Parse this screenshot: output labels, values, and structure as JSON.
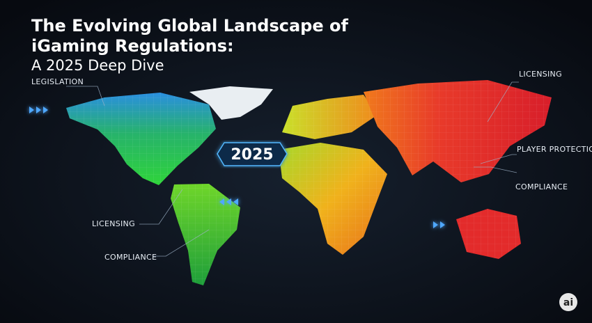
{
  "header": {
    "title_lines": [
      "The Evolving Global Landscape of",
      "iGaming Regulations:"
    ],
    "subtitle": "A 2025 Deep Dive"
  },
  "map": {
    "center_label": "2025",
    "labels": [
      "LEGISLATION",
      "LICENSING",
      "PLAYER PROTECTION",
      "COMPLIANCE",
      "LICENSING",
      "COMPLIANCE"
    ]
  },
  "badge": "ai"
}
